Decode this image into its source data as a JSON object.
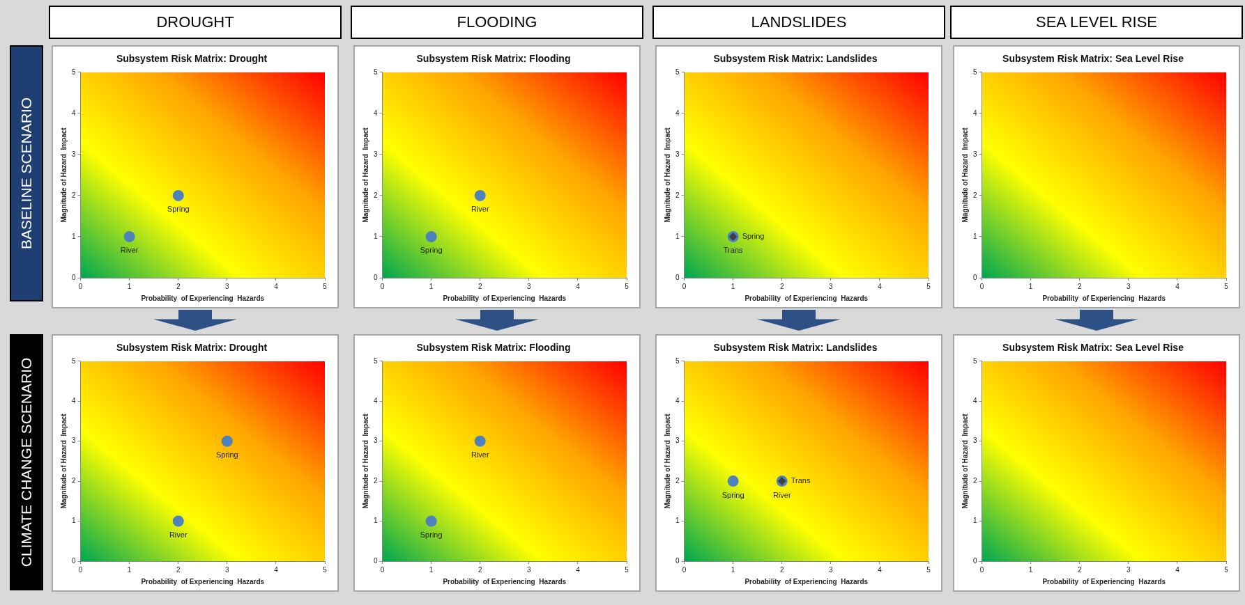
{
  "chart_data": [
    {
      "type": "scatter",
      "title": "Subsystem Risk Matrix: Drought",
      "xlabel": "Probability  of Experiencing  Hazards",
      "ylabel": "Magnitude of Hazard  Impact",
      "xlim": [
        0,
        5
      ],
      "ylim": [
        0,
        5
      ],
      "xticks": [
        0,
        1,
        2,
        3,
        4,
        5
      ],
      "yticks": [
        0,
        1,
        2,
        3,
        4,
        5
      ],
      "annotations": [
        "DROUGHT",
        "BASELINE SCENARIO"
      ],
      "series": [
        {
          "name": "Spring",
          "color": "#4f81bd",
          "marker": "circle",
          "x": [
            2
          ],
          "values": [
            2
          ]
        },
        {
          "name": "River",
          "color": "#4f81bd",
          "marker": "circle",
          "x": [
            1
          ],
          "values": [
            1
          ]
        }
      ]
    },
    {
      "type": "scatter",
      "title": "Subsystem Risk Matrix: Flooding",
      "xlabel": "Probability  of Experiencing  Hazards",
      "ylabel": "Magnitude of Hazard  Impact",
      "xlim": [
        0,
        5
      ],
      "ylim": [
        0,
        5
      ],
      "xticks": [
        0,
        1,
        2,
        3,
        4,
        5
      ],
      "yticks": [
        0,
        1,
        2,
        3,
        4,
        5
      ],
      "annotations": [
        "FLOODING"
      ],
      "series": [
        {
          "name": "River",
          "color": "#4f81bd",
          "marker": "circle",
          "x": [
            2
          ],
          "values": [
            2
          ]
        },
        {
          "name": "Spring",
          "color": "#4f81bd",
          "marker": "circle",
          "x": [
            1
          ],
          "values": [
            1
          ]
        }
      ]
    },
    {
      "type": "scatter",
      "title": "Subsystem Risk Matrix: Landslides",
      "xlabel": "Probability  of Experiencing  Hazards",
      "ylabel": "Magnitude of Hazard  Impact",
      "xlim": [
        0,
        5
      ],
      "ylim": [
        0,
        5
      ],
      "xticks": [
        0,
        1,
        2,
        3,
        4,
        5
      ],
      "yticks": [
        0,
        1,
        2,
        3,
        4,
        5
      ],
      "annotations": [
        "LANDSLIDES"
      ],
      "series": [
        {
          "name": "Trans",
          "color": "#404040",
          "marker": "diamond",
          "x": [
            1
          ],
          "values": [
            1
          ]
        },
        {
          "name": "Spring",
          "color": "#4f81bd",
          "marker": "circle",
          "x": [
            1
          ],
          "values": [
            1
          ]
        }
      ]
    },
    {
      "type": "scatter",
      "title": "Subsystem Risk Matrix: Sea Level Rise",
      "xlabel": "Probability  of Experiencing  Hazards",
      "ylabel": "Magnitude of Hazard  Impact",
      "xlim": [
        0,
        5
      ],
      "ylim": [
        0,
        5
      ],
      "xticks": [
        0,
        1,
        2,
        3,
        4,
        5
      ],
      "yticks": [
        0,
        1,
        2,
        3,
        4,
        5
      ],
      "annotations": [
        "SEA LEVEL RISE"
      ]
    },
    {
      "type": "scatter",
      "title": "Subsystem Risk Matrix: Drought",
      "xlabel": "Probability  of Experiencing  Hazards",
      "ylabel": "Magnitude of Hazard  Impact",
      "xlim": [
        0,
        5
      ],
      "ylim": [
        0,
        5
      ],
      "xticks": [
        0,
        1,
        2,
        3,
        4,
        5
      ],
      "yticks": [
        0,
        1,
        2,
        3,
        4,
        5
      ],
      "annotations": [
        "CLIMATE CHANGE SCENARIO"
      ],
      "series": [
        {
          "name": "Spring",
          "color": "#4f81bd",
          "marker": "circle",
          "x": [
            3
          ],
          "values": [
            3
          ]
        },
        {
          "name": "River",
          "color": "#4f81bd",
          "marker": "circle",
          "x": [
            2
          ],
          "values": [
            1
          ]
        }
      ]
    },
    {
      "type": "scatter",
      "title": "Subsystem Risk Matrix: Flooding",
      "xlabel": "Probability  of Experiencing  Hazards",
      "ylabel": "Magnitude of Hazard  Impact",
      "xlim": [
        0,
        5
      ],
      "ylim": [
        0,
        5
      ],
      "xticks": [
        0,
        1,
        2,
        3,
        4,
        5
      ],
      "yticks": [
        0,
        1,
        2,
        3,
        4,
        5
      ],
      "series": [
        {
          "name": "River",
          "color": "#4f81bd",
          "marker": "circle",
          "x": [
            2
          ],
          "values": [
            3
          ]
        },
        {
          "name": "Spring",
          "color": "#4f81bd",
          "marker": "circle",
          "x": [
            1
          ],
          "values": [
            1
          ]
        }
      ]
    },
    {
      "type": "scatter",
      "title": "Subsystem Risk Matrix: Landslides",
      "xlabel": "Probability  of Experiencing  Hazards",
      "ylabel": "Magnitude of Hazard  Impact",
      "xlim": [
        0,
        5
      ],
      "ylim": [
        0,
        5
      ],
      "xticks": [
        0,
        1,
        2,
        3,
        4,
        5
      ],
      "yticks": [
        0,
        1,
        2,
        3,
        4,
        5
      ],
      "series": [
        {
          "name": "Spring",
          "color": "#4f81bd",
          "marker": "circle",
          "x": [
            1
          ],
          "values": [
            2
          ]
        },
        {
          "name": "River",
          "color": "#4f81bd",
          "marker": "circle",
          "x": [
            2
          ],
          "values": [
            2
          ]
        },
        {
          "name": "Trans",
          "color": "#404040",
          "marker": "diamond",
          "x": [
            2
          ],
          "values": [
            2
          ]
        }
      ]
    },
    {
      "type": "scatter",
      "title": "Subsystem Risk Matrix: Sea Level Rise",
      "xlabel": "Probability  of Experiencing  Hazards",
      "ylabel": "Magnitude of Hazard  Impact",
      "xlim": [
        0,
        5
      ],
      "ylim": [
        0,
        5
      ],
      "xticks": [
        0,
        1,
        2,
        3,
        4,
        5
      ],
      "yticks": [
        0,
        1,
        2,
        3,
        4,
        5
      ]
    }
  ]
}
